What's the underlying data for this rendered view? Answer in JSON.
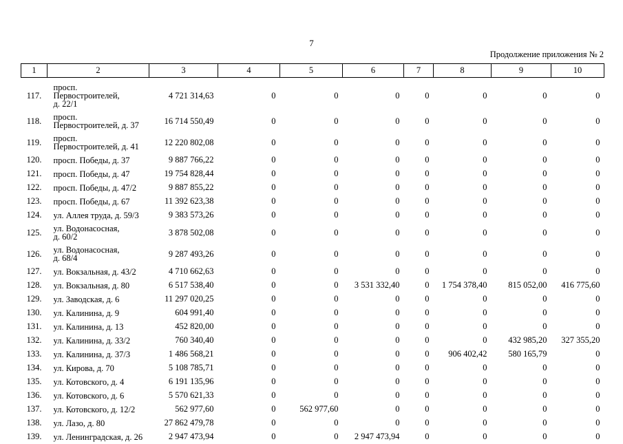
{
  "page": {
    "number": "7",
    "continuation": "Продолжение приложения № 2"
  },
  "table": {
    "headers": [
      "1",
      "2",
      "3",
      "4",
      "5",
      "6",
      "7",
      "8",
      "9",
      "10"
    ],
    "rows": [
      [
        "117.",
        "просп.\nПервостроителей,\nд. 22/1",
        "4 721 314,63",
        "0",
        "0",
        "0",
        "0",
        "0",
        "0",
        "0"
      ],
      [
        "118.",
        "просп.\nПервостроителей, д. 37",
        "16 714 550,49",
        "0",
        "0",
        "0",
        "0",
        "0",
        "0",
        "0"
      ],
      [
        "119.",
        "просп.\nПервостроителей, д. 41",
        "12 220 802,08",
        "0",
        "0",
        "0",
        "0",
        "0",
        "0",
        "0"
      ],
      [
        "120.",
        "просп. Победы, д. 37",
        "9 887 766,22",
        "0",
        "0",
        "0",
        "0",
        "0",
        "0",
        "0"
      ],
      [
        "121.",
        "просп. Победы, д. 47",
        "19 754 828,44",
        "0",
        "0",
        "0",
        "0",
        "0",
        "0",
        "0"
      ],
      [
        "122.",
        "просп. Победы, д. 47/2",
        "9 887 855,22",
        "0",
        "0",
        "0",
        "0",
        "0",
        "0",
        "0"
      ],
      [
        "123.",
        "просп. Победы, д. 67",
        "11 392 623,38",
        "0",
        "0",
        "0",
        "0",
        "0",
        "0",
        "0"
      ],
      [
        "124.",
        "ул. Аллея труда, д. 59/3",
        "9 383 573,26",
        "0",
        "0",
        "0",
        "0",
        "0",
        "0",
        "0"
      ],
      [
        "125.",
        "ул. Водонасосная,\nд. 60/2",
        "3 878 502,08",
        "0",
        "0",
        "0",
        "0",
        "0",
        "0",
        "0"
      ],
      [
        "126.",
        "ул. Водонасосная,\nд. 68/4",
        "9 287 493,26",
        "0",
        "0",
        "0",
        "0",
        "0",
        "0",
        "0"
      ],
      [
        "127.",
        "ул. Вокзальная, д. 43/2",
        "4 710 662,63",
        "0",
        "0",
        "0",
        "0",
        "0",
        "0",
        "0"
      ],
      [
        "128.",
        "ул. Вокзальная, д. 80",
        "6 517 538,40",
        "0",
        "0",
        "3 531 332,40",
        "0",
        "1 754 378,40",
        "815 052,00",
        "416 775,60"
      ],
      [
        "129.",
        "ул. Заводская, д. 6",
        "11 297 020,25",
        "0",
        "0",
        "0",
        "0",
        "0",
        "0",
        "0"
      ],
      [
        "130.",
        "ул. Калинина, д. 9",
        "604 991,40",
        "0",
        "0",
        "0",
        "0",
        "0",
        "0",
        "0"
      ],
      [
        "131.",
        "ул. Калинина, д. 13",
        "452 820,00",
        "0",
        "0",
        "0",
        "0",
        "0",
        "0",
        "0"
      ],
      [
        "132.",
        "ул. Калинина, д. 33/2",
        "760 340,40",
        "0",
        "0",
        "0",
        "0",
        "0",
        "432 985,20",
        "327 355,20"
      ],
      [
        "133.",
        "ул. Калинина, д. 37/3",
        "1 486 568,21",
        "0",
        "0",
        "0",
        "0",
        "906 402,42",
        "580 165,79",
        "0"
      ],
      [
        "134.",
        "ул. Кирова, д. 70",
        "5 108 785,71",
        "0",
        "0",
        "0",
        "0",
        "0",
        "0",
        "0"
      ],
      [
        "135.",
        "ул. Котовского, д. 4",
        "6 191 135,96",
        "0",
        "0",
        "0",
        "0",
        "0",
        "0",
        "0"
      ],
      [
        "136.",
        "ул. Котовского, д. 6",
        "5 570 621,33",
        "0",
        "0",
        "0",
        "0",
        "0",
        "0",
        "0"
      ],
      [
        "137.",
        "ул. Котовского, д. 12/2",
        "562 977,60",
        "0",
        "562 977,60",
        "0",
        "0",
        "0",
        "0",
        "0"
      ],
      [
        "138.",
        "ул. Лазо, д. 80",
        "27 862 479,78",
        "0",
        "0",
        "0",
        "0",
        "0",
        "0",
        "0"
      ],
      [
        "139.",
        "ул. Ленинградская, д. 26",
        "2 947 473,94",
        "0",
        "0",
        "2 947 473,94",
        "0",
        "0",
        "0",
        "0"
      ]
    ]
  }
}
